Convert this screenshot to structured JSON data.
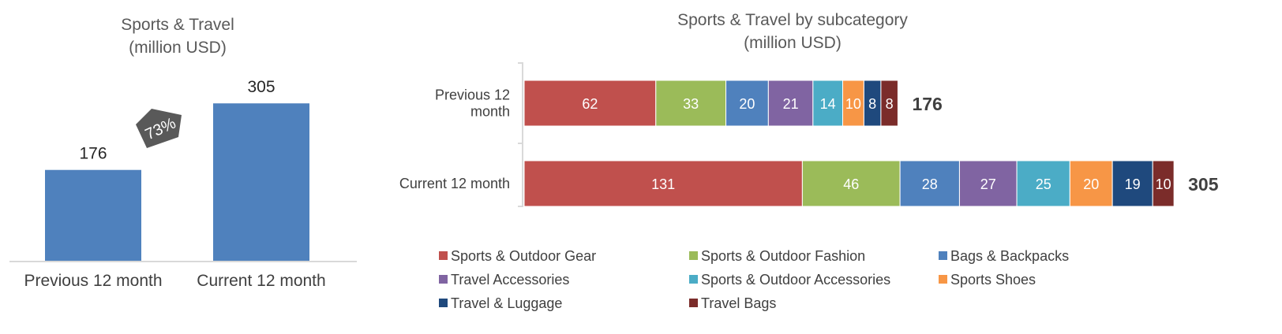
{
  "chart_data": [
    {
      "type": "bar",
      "title": "Sports & Travel",
      "subtitle": "(million USD)",
      "categories": [
        "Previous 12 month",
        "Current 12 month"
      ],
      "values": [
        176,
        305
      ],
      "color": "#4F81BD",
      "ylim": [
        0,
        360
      ],
      "grid": false,
      "annotation": {
        "text": "73%",
        "color": "#595959"
      }
    },
    {
      "type": "bar",
      "orientation": "horizontal",
      "stacked": true,
      "title": "Sports & Travel by subcategory",
      "subtitle": "(million USD)",
      "categories": [
        "Previous 12 month",
        "Current 12 month"
      ],
      "category_display": [
        [
          "Previous 12",
          "month"
        ],
        [
          "Current 12 month"
        ]
      ],
      "totals": [
        176,
        305
      ],
      "xlim": [
        0,
        305
      ],
      "grid": false,
      "legend_position": "bottom",
      "series": [
        {
          "name": "Sports & Outdoor Gear",
          "color": "#C0504D",
          "values": [
            62,
            131
          ]
        },
        {
          "name": "Sports & Outdoor Fashion",
          "color": "#9BBB59",
          "values": [
            33,
            46
          ]
        },
        {
          "name": "Bags & Backpacks",
          "color": "#4F81BD",
          "values": [
            20,
            28
          ]
        },
        {
          "name": "Travel Accessories",
          "color": "#8064A2",
          "values": [
            21,
            27
          ]
        },
        {
          "name": "Sports & Outdoor Accessories",
          "color": "#4BACC6",
          "values": [
            14,
            25
          ]
        },
        {
          "name": "Sports Shoes",
          "color": "#F79646",
          "values": [
            10,
            20
          ]
        },
        {
          "name": "Travel & Luggage",
          "color": "#1F497D",
          "values": [
            8,
            19
          ]
        },
        {
          "name": "Travel Bags",
          "color": "#7B2C2A",
          "values": [
            8,
            10
          ]
        }
      ]
    }
  ]
}
